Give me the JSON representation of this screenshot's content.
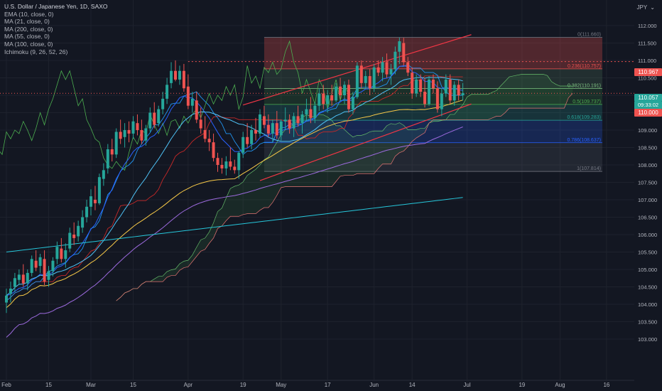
{
  "header": {
    "title": "U.S. Dollar / Japanese Yen, 1D, SAXO",
    "unit": "JPY",
    "indicators": [
      "EMA (10, close, 0)",
      "MA (21, close, 0)",
      "MA (200, close, 0)",
      "MA (55, close, 0)",
      "MA (100, close, 0)",
      "Ichimoku (9, 26, 52, 26)"
    ]
  },
  "price_tags": {
    "last": "110.057",
    "countdown": "09:33:02",
    "round": "110.000",
    "high_line": "110.967"
  },
  "colors": {
    "background": "#131722",
    "up": "#26a69a",
    "down": "#ef5350",
    "ema10": "#2962ff",
    "ma21": "#4fc3f7",
    "ma55": "#f7c948",
    "ma100": "#9c6ade",
    "ma200": "#26c6da",
    "kijun": "#c62828",
    "tenkan": "#2196f3",
    "chikou": "#4caf50"
  },
  "chart_data": {
    "type": "candlestick",
    "symbol": "USDJPY",
    "y_ticks": [
      103.0,
      103.5,
      104.0,
      104.5,
      105.0,
      105.5,
      106.0,
      106.5,
      107.0,
      107.5,
      108.0,
      108.5,
      109.0,
      109.5,
      110.0,
      110.5,
      111.0,
      111.5,
      112.0
    ],
    "ylim": [
      102.75,
      112.25
    ],
    "x_ticks": [
      {
        "label": "Feb",
        "day": 0
      },
      {
        "label": "15",
        "day": 10
      },
      {
        "label": "Mar",
        "day": 20
      },
      {
        "label": "15",
        "day": 30
      },
      {
        "label": "Apr",
        "day": 43
      },
      {
        "label": "19",
        "day": 56
      },
      {
        "label": "May",
        "day": 65
      },
      {
        "label": "17",
        "day": 76
      },
      {
        "label": "Jun",
        "day": 87
      },
      {
        "label": "14",
        "day": 96
      },
      {
        "label": "Jul",
        "day": 109
      },
      {
        "label": "19",
        "day": 122
      },
      {
        "label": "Aug",
        "day": 131
      },
      {
        "label": "16",
        "day": 142
      }
    ],
    "fibonacci": [
      {
        "ratio": "0",
        "price": 111.66
      },
      {
        "ratio": "0.236",
        "price": 110.757
      },
      {
        "ratio": "0.382",
        "price": 110.191
      },
      {
        "ratio": "0.5",
        "price": 109.737
      },
      {
        "ratio": "0.618",
        "price": 109.283
      },
      {
        "ratio": "0.786",
        "price": 108.637
      },
      {
        "ratio": "1",
        "price": 107.814
      }
    ],
    "horizontal_lines": [
      110.967,
      110.0
    ],
    "last_price": 110.057,
    "channel": {
      "upper": [
        {
          "day": 56,
          "price": 109.72
        },
        {
          "day": 110,
          "price": 111.74
        }
      ],
      "lower": [
        {
          "day": 60,
          "price": 107.55
        },
        {
          "day": 110,
          "price": 109.75
        }
      ]
    },
    "ohlc": [
      [
        104.05,
        104.45,
        103.75,
        104.25
      ],
      [
        104.3,
        104.65,
        104.05,
        104.45
      ],
      [
        104.5,
        104.9,
        104.35,
        104.75
      ],
      [
        104.7,
        105.0,
        104.55,
        104.85
      ],
      [
        104.85,
        105.15,
        104.5,
        104.6
      ],
      [
        104.6,
        105.0,
        104.4,
        104.9
      ],
      [
        104.9,
        105.4,
        104.8,
        105.3
      ],
      [
        105.25,
        105.55,
        104.95,
        105.05
      ],
      [
        105.1,
        105.45,
        104.9,
        105.35
      ],
      [
        105.3,
        105.55,
        104.55,
        104.65
      ],
      [
        104.7,
        105.1,
        104.5,
        104.95
      ],
      [
        104.95,
        105.35,
        104.8,
        105.25
      ],
      [
        105.3,
        105.8,
        105.15,
        105.65
      ],
      [
        105.6,
        105.9,
        105.2,
        105.3
      ],
      [
        105.3,
        105.75,
        105.05,
        105.55
      ],
      [
        105.6,
        106.2,
        105.5,
        106.05
      ],
      [
        106.0,
        106.35,
        105.7,
        105.9
      ],
      [
        105.95,
        106.4,
        105.8,
        106.25
      ],
      [
        106.2,
        106.7,
        106.05,
        106.5
      ],
      [
        106.5,
        107.0,
        106.35,
        106.8
      ],
      [
        106.8,
        107.3,
        106.55,
        107.1
      ],
      [
        107.0,
        107.4,
        106.7,
        106.9
      ],
      [
        106.9,
        107.75,
        106.85,
        107.65
      ],
      [
        107.6,
        108.05,
        107.4,
        107.85
      ],
      [
        107.9,
        108.6,
        107.75,
        108.45
      ],
      [
        108.45,
        108.75,
        108.1,
        108.3
      ],
      [
        108.3,
        109.05,
        108.2,
        108.95
      ],
      [
        108.95,
        109.3,
        108.6,
        108.75
      ],
      [
        108.8,
        109.2,
        108.5,
        109.0
      ],
      [
        109.0,
        109.25,
        108.65,
        108.9
      ],
      [
        108.9,
        109.4,
        108.75,
        109.25
      ],
      [
        109.2,
        109.45,
        108.85,
        109.0
      ],
      [
        109.0,
        109.3,
        108.6,
        108.7
      ],
      [
        108.7,
        109.15,
        108.55,
        109.05
      ],
      [
        109.05,
        109.65,
        108.95,
        109.5
      ],
      [
        109.5,
        109.8,
        109.05,
        109.15
      ],
      [
        109.2,
        109.7,
        109.1,
        109.6
      ],
      [
        109.6,
        110.1,
        109.45,
        109.9
      ],
      [
        109.9,
        110.5,
        109.75,
        110.3
      ],
      [
        110.35,
        110.95,
        110.2,
        110.7
      ],
      [
        110.7,
        111.0,
        110.4,
        110.45
      ],
      [
        110.45,
        110.85,
        110.3,
        110.7
      ],
      [
        110.7,
        110.9,
        110.1,
        110.2
      ],
      [
        110.25,
        110.6,
        109.6,
        109.7
      ],
      [
        109.7,
        110.1,
        109.5,
        109.9
      ],
      [
        109.85,
        110.1,
        109.2,
        109.3
      ],
      [
        109.3,
        109.65,
        108.9,
        109.05
      ],
      [
        109.0,
        109.4,
        108.65,
        108.75
      ],
      [
        108.75,
        109.0,
        108.4,
        108.65
      ],
      [
        108.65,
        108.9,
        108.1,
        108.2
      ],
      [
        108.2,
        108.35,
        107.8,
        108.0
      ],
      [
        108.0,
        108.2,
        107.75,
        107.9
      ],
      [
        107.9,
        108.25,
        107.7,
        108.1
      ],
      [
        108.1,
        108.5,
        107.85,
        107.95
      ],
      [
        107.95,
        108.15,
        107.75,
        107.85
      ],
      [
        107.85,
        108.4,
        107.6,
        108.35
      ],
      [
        108.35,
        108.95,
        108.2,
        108.8
      ],
      [
        108.8,
        109.2,
        108.5,
        108.6
      ],
      [
        108.6,
        109.15,
        108.45,
        109.0
      ],
      [
        109.0,
        109.35,
        108.7,
        108.9
      ],
      [
        108.9,
        109.6,
        108.8,
        109.45
      ],
      [
        109.4,
        109.7,
        109.05,
        109.15
      ],
      [
        109.15,
        109.45,
        108.8,
        108.9
      ],
      [
        108.9,
        109.3,
        108.65,
        109.2
      ],
      [
        109.2,
        109.55,
        108.75,
        108.85
      ],
      [
        108.85,
        109.3,
        108.7,
        109.25
      ],
      [
        109.25,
        109.65,
        109.0,
        109.3
      ],
      [
        109.3,
        109.45,
        108.9,
        109.05
      ],
      [
        109.05,
        109.5,
        108.8,
        109.4
      ],
      [
        109.4,
        109.7,
        109.1,
        109.2
      ],
      [
        109.2,
        109.55,
        108.9,
        109.45
      ],
      [
        109.45,
        109.9,
        109.25,
        109.6
      ],
      [
        109.6,
        109.95,
        109.2,
        109.35
      ],
      [
        109.35,
        109.8,
        109.2,
        109.7
      ],
      [
        109.7,
        110.2,
        109.55,
        110.05
      ],
      [
        110.05,
        110.3,
        109.6,
        109.75
      ],
      [
        109.75,
        110.15,
        109.5,
        110.0
      ],
      [
        110.0,
        110.3,
        109.7,
        109.85
      ],
      [
        109.85,
        110.35,
        109.8,
        110.25
      ],
      [
        110.25,
        110.5,
        109.9,
        110.0
      ],
      [
        110.0,
        110.4,
        109.75,
        110.3
      ],
      [
        110.3,
        110.45,
        109.5,
        109.6
      ],
      [
        109.6,
        110.1,
        109.45,
        109.95
      ],
      [
        109.95,
        110.95,
        109.9,
        110.85
      ],
      [
        110.85,
        111.0,
        110.2,
        110.35
      ],
      [
        110.35,
        110.7,
        110.2,
        110.55
      ],
      [
        110.55,
        110.75,
        110.0,
        110.2
      ],
      [
        110.2,
        110.9,
        110.1,
        110.8
      ],
      [
        110.8,
        111.0,
        110.55,
        110.65
      ],
      [
        110.65,
        111.1,
        110.4,
        110.95
      ],
      [
        110.95,
        111.2,
        110.5,
        110.6
      ],
      [
        110.6,
        110.9,
        110.3,
        110.75
      ],
      [
        110.75,
        111.4,
        110.6,
        111.25
      ],
      [
        111.25,
        111.66,
        110.9,
        111.55
      ],
      [
        111.5,
        111.65,
        110.85,
        110.95
      ],
      [
        110.95,
        111.1,
        110.55,
        110.65
      ],
      [
        110.65,
        110.8,
        109.9,
        110.05
      ],
      [
        110.05,
        110.6,
        109.95,
        110.45
      ],
      [
        110.45,
        110.6,
        109.95,
        110.1
      ],
      [
        110.1,
        110.5,
        109.65,
        109.75
      ],
      [
        109.75,
        110.55,
        109.7,
        110.45
      ],
      [
        110.45,
        110.6,
        110.05,
        110.2
      ],
      [
        110.2,
        110.4,
        109.5,
        109.6
      ],
      [
        109.6,
        110.2,
        109.4,
        110.05
      ],
      [
        110.05,
        110.6,
        109.95,
        110.45
      ],
      [
        110.45,
        110.6,
        109.75,
        109.85
      ],
      [
        109.85,
        110.4,
        109.7,
        110.3
      ],
      [
        110.3,
        110.45,
        109.85,
        110.0
      ],
      [
        110.0,
        110.35,
        109.85,
        110.06
      ]
    ]
  }
}
